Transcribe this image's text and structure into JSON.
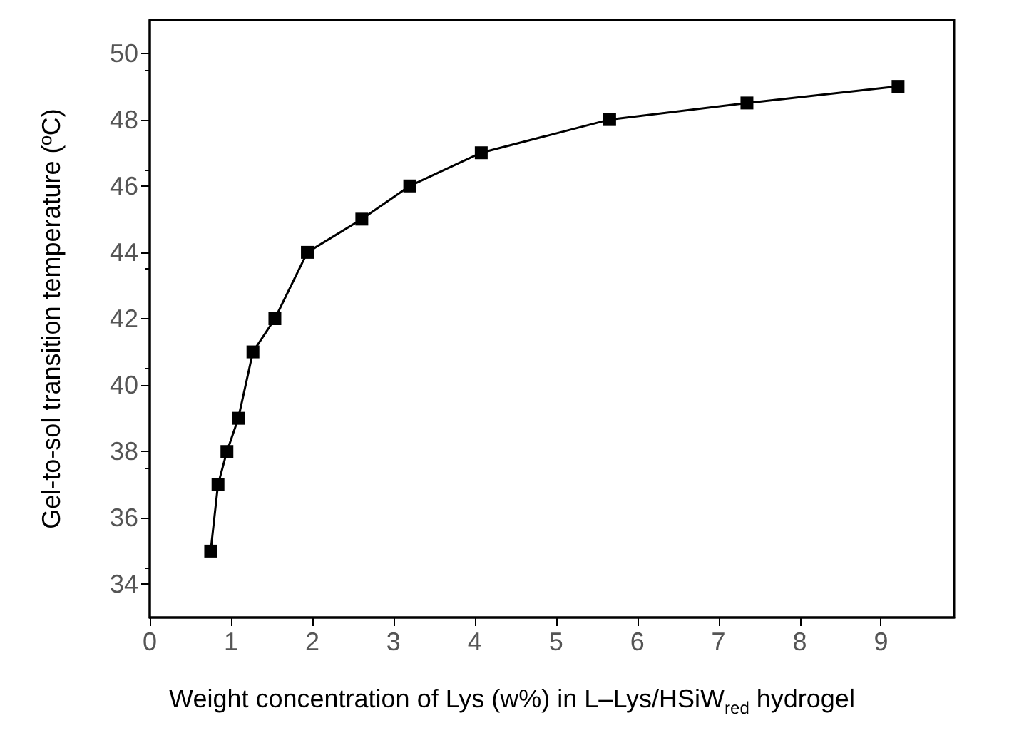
{
  "chart_data": {
    "type": "line",
    "xlabel": "Weight concentration of Lys (w%) in L–Lys/HSiW$_{red}$ hydrogel",
    "ylabel": "Gel-to-sol transition temperature (ºC)",
    "x": [
      0.75,
      0.84,
      0.95,
      1.09,
      1.27,
      1.54,
      1.94,
      2.61,
      3.2,
      4.08,
      5.66,
      7.35,
      9.21
    ],
    "series": [
      {
        "color": "#000000",
        "values": [
          35,
          37,
          38,
          39,
          41,
          42,
          44,
          45,
          46,
          47,
          48,
          48.5,
          49
        ]
      }
    ],
    "xlim": [
      0,
      9.9
    ],
    "xticks": [
      0,
      1,
      2,
      3,
      4,
      5,
      6,
      7,
      8,
      9
    ],
    "ylim": [
      33,
      51
    ],
    "yticks": [
      34,
      36,
      38,
      40,
      42,
      44,
      46,
      48,
      50
    ],
    "marker": "square",
    "line_style": "solid",
    "grid": false
  }
}
